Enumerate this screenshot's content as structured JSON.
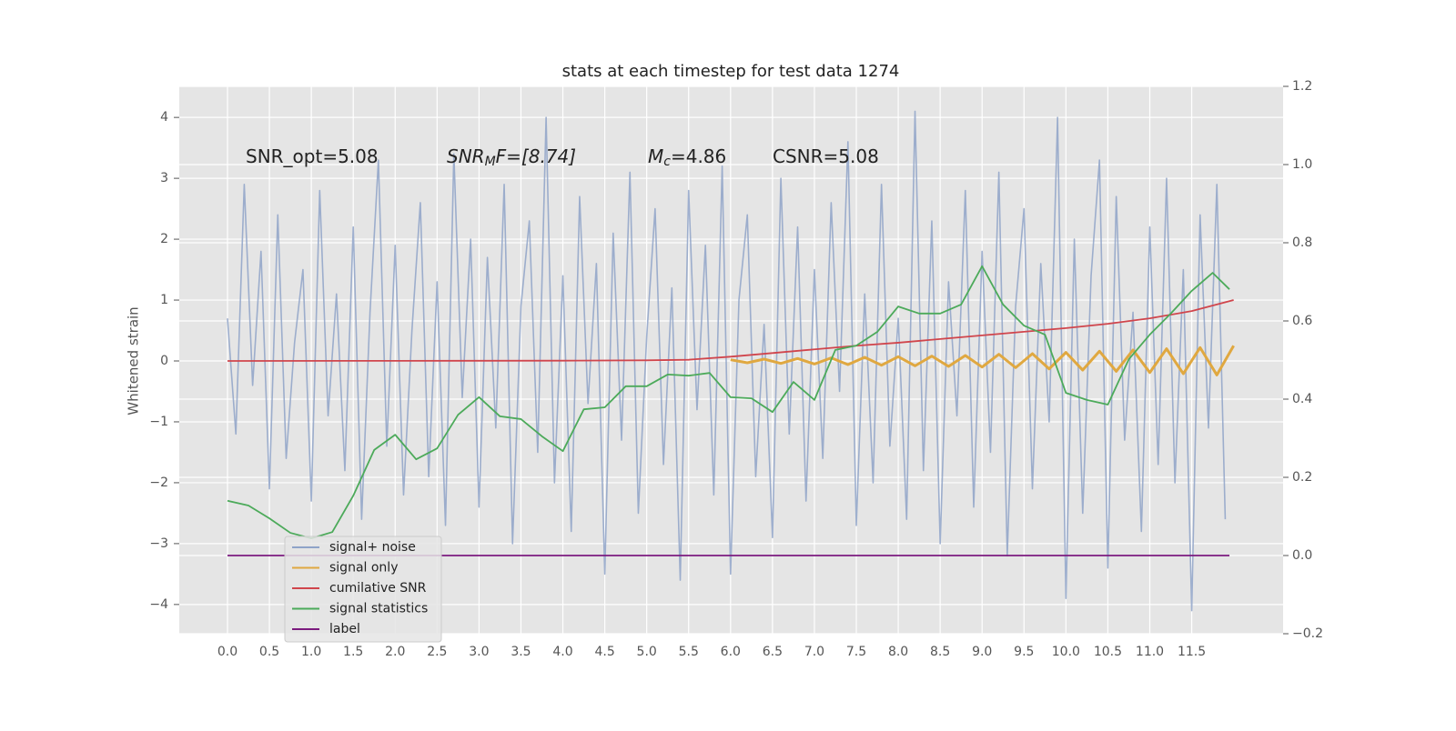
{
  "chart_data": {
    "type": "line",
    "title": "stats at each timestep for test data 1274",
    "ylabel": "Whitened strain",
    "grid": true,
    "legend": "lower left",
    "annotations": [
      {
        "text": "SNR_opt=5.08"
      },
      {
        "text": "SNR",
        "sub": "M",
        "rest": "F=[8.74]"
      },
      {
        "text": "M",
        "sub": "c",
        "rest": "=4.86"
      },
      {
        "text": "CSNR=5.08"
      }
    ],
    "xlim": [
      -0.575,
      12.59
    ],
    "ylim": [
      -4.48,
      4.51
    ],
    "y2lim": [
      -0.2,
      1.2
    ],
    "xticks": [
      {
        "value": 0,
        "label": "0.0"
      },
      {
        "value": 0.5,
        "label": "0.5"
      },
      {
        "value": 1,
        "label": "1.0"
      },
      {
        "value": 1.5,
        "label": "1.5"
      },
      {
        "value": 2,
        "label": "2.0"
      },
      {
        "value": 2.5,
        "label": "2.5"
      },
      {
        "value": 3,
        "label": "3.0"
      },
      {
        "value": 3.5,
        "label": "3.5"
      },
      {
        "value": 4,
        "label": "4.0"
      },
      {
        "value": 4.5,
        "label": "4.5"
      },
      {
        "value": 5,
        "label": "5.0"
      },
      {
        "value": 5.5,
        "label": "5.5"
      },
      {
        "value": 6,
        "label": "6.0"
      },
      {
        "value": 6.5,
        "label": "6.5"
      },
      {
        "value": 7,
        "label": "7.0"
      },
      {
        "value": 7.5,
        "label": "7.5"
      },
      {
        "value": 8,
        "label": "8.0"
      },
      {
        "value": 8.5,
        "label": "8.5"
      },
      {
        "value": 9,
        "label": "9.0"
      },
      {
        "value": 9.5,
        "label": "9.5"
      },
      {
        "value": 10,
        "label": "10.0"
      },
      {
        "value": 10.5,
        "label": "10.5"
      },
      {
        "value": 11,
        "label": "11.0"
      },
      {
        "value": 11.5,
        "label": "11.5"
      }
    ],
    "yticks": [
      {
        "value": -4,
        "label": "−4"
      },
      {
        "value": -3,
        "label": "−3"
      },
      {
        "value": -2,
        "label": "−2"
      },
      {
        "value": -1,
        "label": "−1"
      },
      0,
      1,
      2,
      3,
      4
    ],
    "y2ticks": [
      {
        "value": -0.2,
        "label": "−0.2"
      },
      {
        "value": 0,
        "label": "0.0"
      },
      {
        "value": 0.2,
        "label": "0.2"
      },
      {
        "value": 0.4,
        "label": "0.4"
      },
      {
        "value": 0.6,
        "label": "0.6"
      },
      {
        "value": 0.8,
        "label": "0.8"
      },
      {
        "value": 1.0,
        "label": "1.0"
      },
      {
        "value": 1.2,
        "label": "1.2"
      }
    ],
    "series": [
      {
        "name": "signal+ noise",
        "color": "#8fa3c8",
        "axis": "y",
        "x": [
          0,
          0.1,
          0.2,
          0.3,
          0.4,
          0.5,
          0.6,
          0.7,
          0.8,
          0.9,
          1,
          1.1,
          1.2,
          1.3,
          1.4,
          1.5,
          1.6,
          1.7,
          1.8,
          1.9,
          2,
          2.1,
          2.2,
          2.3,
          2.4,
          2.5,
          2.6,
          2.7,
          2.8,
          2.9,
          3,
          3.1,
          3.2,
          3.3,
          3.4,
          3.5,
          3.6,
          3.7,
          3.8,
          3.9,
          4,
          4.1,
          4.2,
          4.3,
          4.4,
          4.5,
          4.6,
          4.7,
          4.8,
          4.9,
          5,
          5.1,
          5.2,
          5.3,
          5.4,
          5.5,
          5.6,
          5.7,
          5.8,
          5.9,
          6,
          6.1,
          6.2,
          6.3,
          6.4,
          6.5,
          6.6,
          6.7,
          6.8,
          6.9,
          7,
          7.1,
          7.2,
          7.3,
          7.4,
          7.5,
          7.6,
          7.7,
          7.8,
          7.9,
          8,
          8.1,
          8.2,
          8.3,
          8.4,
          8.5,
          8.6,
          8.7,
          8.8,
          8.9,
          9,
          9.1,
          9.2,
          9.3,
          9.4,
          9.5,
          9.6,
          9.7,
          9.8,
          9.9,
          10,
          10.1,
          10.2,
          10.3,
          10.4,
          10.5,
          10.6,
          10.7,
          10.8,
          10.9,
          11,
          11.1,
          11.2,
          11.3,
          11.4,
          11.5,
          11.6,
          11.7,
          11.8,
          11.9
        ],
        "values": [
          0.7,
          -1.2,
          2.9,
          -0.4,
          1.8,
          -2.1,
          2.4,
          -1.6,
          0.3,
          1.5,
          -2.3,
          2.8,
          -0.9,
          1.1,
          -1.8,
          2.2,
          -2.6,
          0.8,
          3.3,
          -1.4,
          1.9,
          -2.2,
          0.5,
          2.6,
          -1.9,
          1.3,
          -2.7,
          3.4,
          -0.6,
          2.0,
          -2.4,
          1.7,
          -1.1,
          2.9,
          -3.0,
          0.9,
          2.3,
          -1.5,
          4.0,
          -2.0,
          1.4,
          -2.8,
          2.7,
          -0.7,
          1.6,
          -3.5,
          2.1,
          -1.3,
          3.1,
          -2.5,
          0.4,
          2.5,
          -1.7,
          1.2,
          -3.6,
          2.8,
          -0.8,
          1.9,
          -2.2,
          3.2,
          -3.5,
          1.0,
          2.4,
          -1.9,
          0.6,
          -2.9,
          3.0,
          -1.2,
          2.2,
          -2.3,
          1.5,
          -1.6,
          2.6,
          -0.5,
          3.6,
          -2.7,
          1.1,
          -2.0,
          2.9,
          -1.4,
          0.7,
          -2.6,
          4.1,
          -1.8,
          2.3,
          -3.0,
          1.3,
          -0.9,
          2.8,
          -2.4,
          1.8,
          -1.5,
          3.1,
          -3.2,
          0.9,
          2.5,
          -2.1,
          1.6,
          -1.0,
          4.0,
          -3.9,
          2.0,
          -2.5,
          1.4,
          3.3,
          -3.4,
          2.7,
          -1.3,
          0.8,
          -2.8,
          2.2,
          -1.7,
          3.0,
          -2.0,
          1.5,
          -4.1,
          2.4,
          -1.1,
          2.9,
          -2.6
        ]
      },
      {
        "name": "signal only",
        "color": "#e0a840",
        "axis": "y",
        "x": [
          6,
          6.2,
          6.4,
          6.6,
          6.8,
          7,
          7.2,
          7.4,
          7.6,
          7.8,
          8,
          8.2,
          8.4,
          8.6,
          8.8,
          9,
          9.2,
          9.4,
          9.6,
          9.8,
          10,
          10.2,
          10.4,
          10.6,
          10.8,
          11,
          11.2,
          11.4,
          11.6,
          11.8,
          12
        ],
        "values": [
          0.02,
          -0.03,
          0.03,
          -0.04,
          0.04,
          -0.05,
          0.05,
          -0.06,
          0.06,
          -0.07,
          0.07,
          -0.08,
          0.08,
          -0.09,
          0.09,
          -0.1,
          0.11,
          -0.11,
          0.12,
          -0.13,
          0.14,
          -0.15,
          0.16,
          -0.17,
          0.18,
          -0.19,
          0.2,
          -0.21,
          0.22,
          -0.23,
          0.25
        ]
      },
      {
        "name": "cumilative SNR",
        "color": "#d0454c",
        "axis": "y",
        "x": [
          0,
          2,
          4,
          5,
          5.5,
          6,
          6.5,
          7,
          7.5,
          8,
          8.5,
          9,
          9.5,
          10,
          10.5,
          11,
          11.5,
          12
        ],
        "values": [
          0,
          0.002,
          0.005,
          0.01,
          0.02,
          0.07,
          0.13,
          0.19,
          0.25,
          0.3,
          0.36,
          0.42,
          0.48,
          0.54,
          0.61,
          0.7,
          0.82,
          1.0
        ]
      },
      {
        "name": "signal statistics",
        "color": "#4caa5a",
        "axis": "y2",
        "x": [
          0,
          0.25,
          0.5,
          0.75,
          1,
          1.25,
          1.5,
          1.75,
          2,
          2.25,
          2.5,
          2.75,
          3,
          3.25,
          3.5,
          3.75,
          4,
          4.25,
          4.5,
          4.75,
          5,
          5.25,
          5.5,
          5.75,
          6,
          6.25,
          6.5,
          6.75,
          7,
          7.25,
          7.5,
          7.75,
          8,
          8.25,
          8.5,
          8.75,
          9,
          9.25,
          9.5,
          9.75,
          10,
          10.25,
          10.5,
          10.75,
          11,
          11.25,
          11.5,
          11.75,
          11.95
        ],
        "values": [
          0.14,
          0.128,
          0.095,
          0.058,
          0.044,
          0.06,
          0.153,
          0.27,
          0.309,
          0.246,
          0.274,
          0.36,
          0.405,
          0.356,
          0.349,
          0.305,
          0.267,
          0.374,
          0.379,
          0.433,
          0.433,
          0.463,
          0.46,
          0.467,
          0.405,
          0.402,
          0.367,
          0.444,
          0.398,
          0.526,
          0.537,
          0.572,
          0.637,
          0.619,
          0.619,
          0.642,
          0.74,
          0.642,
          0.588,
          0.565,
          0.416,
          0.398,
          0.386,
          0.502,
          0.565,
          0.619,
          0.677,
          0.723,
          0.681
        ]
      },
      {
        "name": "label",
        "color": "#7b1a7e",
        "axis": "y2",
        "x": [
          0,
          11.95
        ],
        "values": [
          0,
          0
        ]
      }
    ]
  }
}
